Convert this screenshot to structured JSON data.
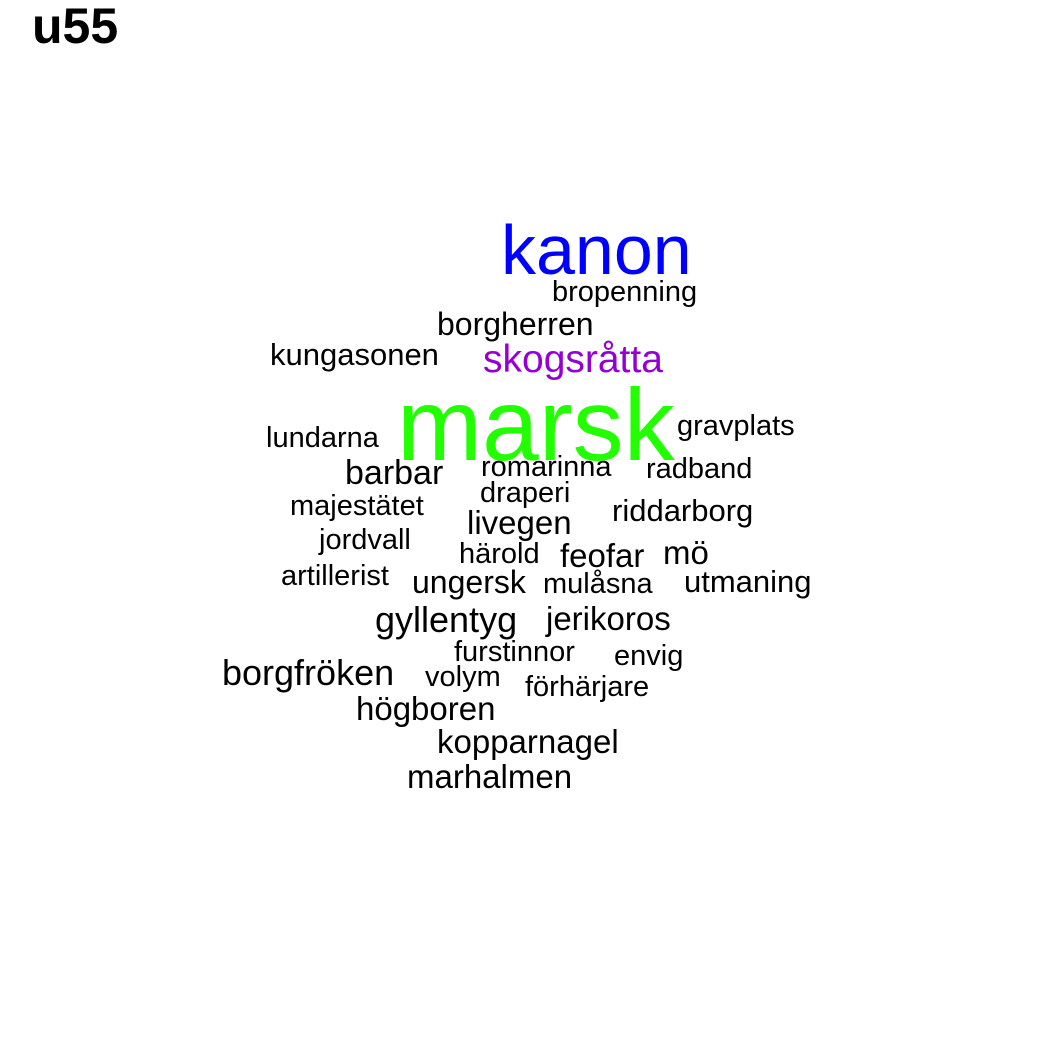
{
  "title": "u55",
  "colors": {
    "default": "#000000",
    "kanon": "#0000ff",
    "skogsratta": "#9400d3",
    "marsk": "#22ff00"
  },
  "words": {
    "kanon": "kanon",
    "bropenning": "bropenning",
    "borgherren": "borgherren",
    "kungasonen": "kungasonen",
    "skogsratta": "skogsråtta",
    "marsk": "marsk",
    "gravplats": "gravplats",
    "lundarna": "lundarna",
    "barbar": "barbar",
    "romarinna": "romarinna",
    "radband": "radband",
    "draperi": "draperi",
    "majestatet": "majestätet",
    "riddarborg": "riddarborg",
    "livegen": "livegen",
    "jordvall": "jordvall",
    "harold": "härold",
    "feofar": "feofar",
    "mo": "mö",
    "artillerist": "artillerist",
    "ungersk": "ungersk",
    "mulasna": "mulåsna",
    "utmaning": "utmaning",
    "gyllentyg": "gyllentyg",
    "jerikoros": "jerikoros",
    "furstinnor": "furstinnor",
    "envig": "envig",
    "borgfroken": "borgfröken",
    "volym": "volym",
    "forharjare": "förhärjare",
    "hogboren": "högboren",
    "kopparnagel": "kopparnagel",
    "marhalmen": "marhalmen"
  }
}
